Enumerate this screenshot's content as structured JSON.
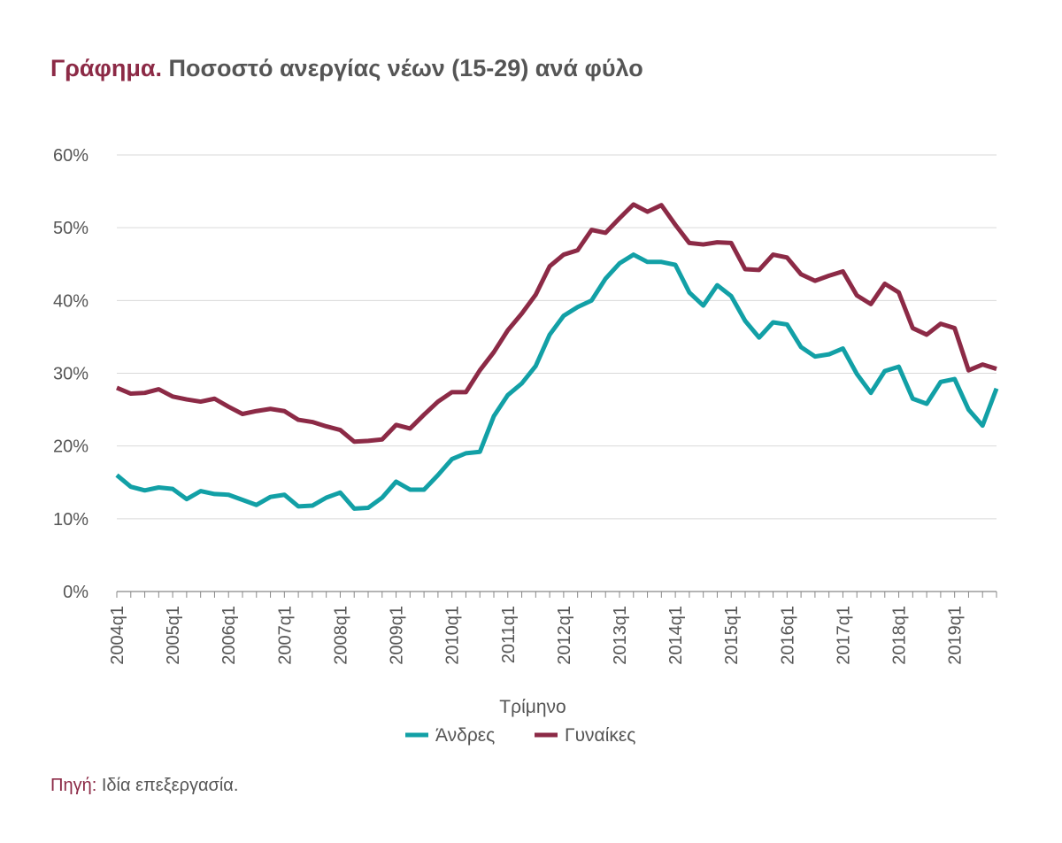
{
  "title": {
    "prefix": "Γράφημα.",
    "text": "Ποσοστό ανεργίας νέων (15-29) ανά φύλο"
  },
  "source": {
    "prefix": "Πηγή:",
    "text": "Ιδία επεξεργασία."
  },
  "chart_data": {
    "type": "line",
    "xlabel": "Τρίμηνο",
    "ylabel": "",
    "ylim": [
      0,
      60
    ],
    "y_ticks": [
      0,
      10,
      20,
      30,
      40,
      50,
      60
    ],
    "y_tick_suffix": "%",
    "grid": "horizontal",
    "legend_position": "bottom",
    "x_tick_labels": [
      "2004q1",
      "2005q1",
      "2006q1",
      "2007q1",
      "2008q1",
      "2009q1",
      "2010q1",
      "2011q1",
      "2012q1",
      "2013q1",
      "2014q1",
      "2015q1",
      "2016q1",
      "2017q1",
      "2018q1",
      "2019q1"
    ],
    "x": [
      "2004q1",
      "2004q2",
      "2004q3",
      "2004q4",
      "2005q1",
      "2005q2",
      "2005q3",
      "2005q4",
      "2006q1",
      "2006q2",
      "2006q3",
      "2006q4",
      "2007q1",
      "2007q2",
      "2007q3",
      "2007q4",
      "2008q1",
      "2008q2",
      "2008q3",
      "2008q4",
      "2009q1",
      "2009q2",
      "2009q3",
      "2009q4",
      "2010q1",
      "2010q2",
      "2010q3",
      "2010q4",
      "2011q1",
      "2011q2",
      "2011q3",
      "2011q4",
      "2012q1",
      "2012q2",
      "2012q3",
      "2012q4",
      "2013q1",
      "2013q2",
      "2013q3",
      "2013q4",
      "2014q1",
      "2014q2",
      "2014q3",
      "2014q4",
      "2015q1",
      "2015q2",
      "2015q3",
      "2015q4",
      "2016q1",
      "2016q2",
      "2016q3",
      "2016q4",
      "2017q1",
      "2017q2",
      "2017q3",
      "2017q4",
      "2018q1",
      "2018q2",
      "2018q3",
      "2018q4",
      "2019q1",
      "2019q2",
      "2019q3",
      "2019q4"
    ],
    "series": [
      {
        "name": "Άνδρες",
        "color": "#12a0a6",
        "values": [
          16.0,
          14.4,
          13.9,
          14.3,
          14.1,
          12.7,
          13.8,
          13.4,
          13.3,
          12.6,
          11.9,
          13.0,
          13.3,
          11.7,
          11.8,
          12.9,
          13.6,
          11.4,
          11.5,
          12.9,
          15.1,
          14.0,
          14.0,
          16.0,
          18.2,
          19.0,
          19.2,
          24.1,
          27.0,
          28.6,
          31.0,
          35.3,
          37.9,
          39.1,
          40.0,
          43.0,
          45.1,
          46.3,
          45.3,
          45.3,
          44.9,
          41.1,
          39.3,
          42.1,
          40.6,
          37.2,
          34.9,
          37.0,
          36.7,
          33.6,
          32.3,
          32.6,
          33.4,
          29.9,
          27.3,
          30.3,
          30.9,
          26.5,
          25.8,
          28.8,
          29.2,
          25.0,
          22.8,
          27.9
        ]
      },
      {
        "name": "Γυναίκες",
        "color": "#8c2a46",
        "values": [
          28.0,
          27.2,
          27.3,
          27.8,
          26.8,
          26.4,
          26.1,
          26.5,
          25.4,
          24.4,
          24.8,
          25.1,
          24.8,
          23.6,
          23.3,
          22.7,
          22.2,
          20.6,
          20.7,
          20.9,
          22.9,
          22.4,
          24.3,
          26.1,
          27.4,
          27.4,
          30.4,
          32.9,
          35.9,
          38.2,
          40.8,
          44.7,
          46.3,
          46.9,
          49.7,
          49.3,
          51.3,
          53.2,
          52.2,
          53.1,
          50.4,
          47.9,
          47.7,
          48.0,
          47.9,
          44.3,
          44.2,
          46.3,
          45.9,
          43.6,
          42.7,
          43.4,
          44.0,
          40.7,
          39.5,
          42.3,
          41.1,
          36.2,
          35.3,
          36.8,
          36.2,
          30.4,
          31.2,
          30.6
        ]
      }
    ]
  }
}
